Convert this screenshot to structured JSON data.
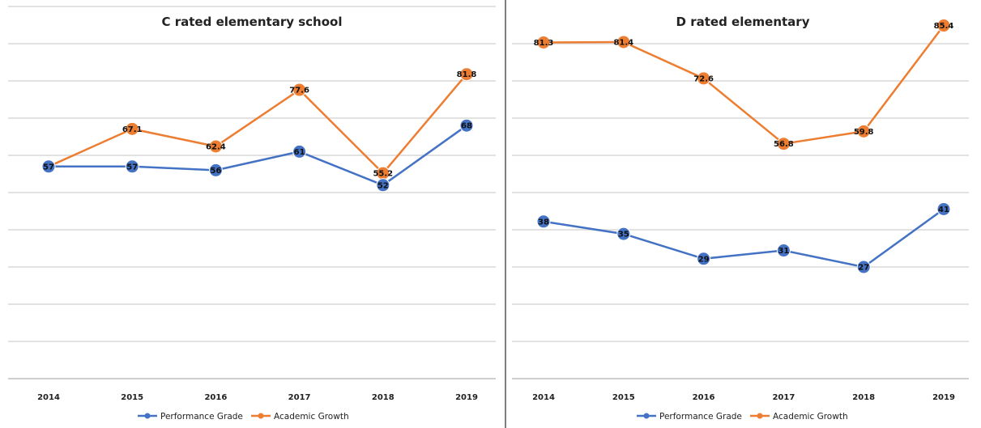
{
  "chart_data": [
    {
      "type": "line",
      "title": "C rated elementary school",
      "categories": [
        "2014",
        "2015",
        "2016",
        "2017",
        "2018",
        "2019"
      ],
      "series": [
        {
          "name": "Performance Grade",
          "values": [
            57,
            57,
            56,
            61,
            52,
            68
          ],
          "color": "#4472C4"
        },
        {
          "name": "Academic Growth",
          "values": [
            57,
            67.1,
            62.4,
            77.6,
            55.2,
            81.8
          ],
          "color": "#ED7D31"
        }
      ],
      "data_labels": {
        "Performance Grade": [
          "57",
          "57",
          "56",
          "61",
          "52",
          "68"
        ],
        "Academic Growth": [
          "57",
          "67.1",
          "62.4",
          "77.6",
          "55.2",
          "81.8"
        ]
      },
      "ylim": [
        0,
        100
      ],
      "grid": true,
      "legend": "bottom"
    },
    {
      "type": "line",
      "title": "D rated elementary",
      "categories": [
        "2014",
        "2015",
        "2016",
        "2017",
        "2018",
        "2019"
      ],
      "series": [
        {
          "name": "Performance Grade",
          "values": [
            38,
            35,
            29,
            31,
            27,
            41
          ],
          "color": "#4472C4"
        },
        {
          "name": "Academic Growth",
          "values": [
            81.3,
            81.4,
            72.6,
            56.8,
            59.8,
            85.4
          ],
          "color": "#ED7D31"
        }
      ],
      "data_labels": {
        "Performance Grade": [
          "38",
          "35",
          "29",
          "31",
          "27",
          "41"
        ],
        "Academic Growth": [
          "81.3",
          "81.4",
          "72.6",
          "56.8",
          "59.8",
          "85.4"
        ]
      },
      "ylim": [
        0,
        90
      ],
      "grid": true,
      "legend": "bottom"
    }
  ]
}
